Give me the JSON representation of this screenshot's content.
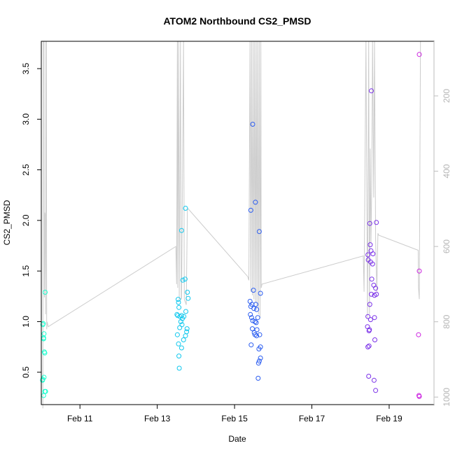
{
  "chart_data": {
    "type": "scatter",
    "title": "ATOM2 Northbound CS2_PMSD",
    "xlabel": "Date",
    "ylabel": "CS2_PMSD",
    "x_ticks": [
      "Feb 11",
      "Feb 13",
      "Feb 15",
      "Feb 17",
      "Feb 19"
    ],
    "y_ticks": [
      "0.5",
      "1.0",
      "1.5",
      "2.0",
      "2.5",
      "3.0",
      "3.5"
    ],
    "y2_ticks": [
      "200",
      "400",
      "600",
      "800",
      "1000"
    ],
    "xlim": [
      10.0,
      20.16
    ],
    "ylim": [
      0.18,
      3.77
    ],
    "y2lim": [
      55,
      1020
    ],
    "marker": "open-circle",
    "grid": false,
    "secondary_axis_color": "#bdbdbd",
    "line_color": "#cccccc",
    "points": [
      {
        "x": 10.04,
        "y": 0.97,
        "color": "#1affd0"
      },
      {
        "x": 10.05,
        "y": 0.98,
        "color": "#1affd0"
      },
      {
        "x": 10.06,
        "y": 0.84,
        "color": "#1affd0"
      },
      {
        "x": 10.06,
        "y": 0.83,
        "color": "#1affd0"
      },
      {
        "x": 10.07,
        "y": 0.88,
        "color": "#1affd0"
      },
      {
        "x": 10.08,
        "y": 0.7,
        "color": "#1affd0"
      },
      {
        "x": 10.09,
        "y": 0.69,
        "color": "#1affd0"
      },
      {
        "x": 10.03,
        "y": 0.42,
        "color": "#1affd0"
      },
      {
        "x": 10.04,
        "y": 0.43,
        "color": "#1affd0"
      },
      {
        "x": 10.07,
        "y": 0.45,
        "color": "#1affd0"
      },
      {
        "x": 10.09,
        "y": 0.31,
        "color": "#1affd0"
      },
      {
        "x": 10.06,
        "y": 0.27,
        "color": "#1affd0"
      },
      {
        "x": 10.11,
        "y": 0.31,
        "color": "#1affd0"
      },
      {
        "x": 10.1,
        "y": 1.29,
        "color": "#1affd0"
      },
      {
        "x": 13.73,
        "y": 2.12,
        "color": "#10c8ee"
      },
      {
        "x": 13.63,
        "y": 1.9,
        "color": "#10c8ee"
      },
      {
        "x": 13.66,
        "y": 1.41,
        "color": "#10c8ee"
      },
      {
        "x": 13.72,
        "y": 1.42,
        "color": "#10c8ee"
      },
      {
        "x": 13.78,
        "y": 1.29,
        "color": "#10c8ee"
      },
      {
        "x": 13.8,
        "y": 1.23,
        "color": "#10c8ee"
      },
      {
        "x": 13.54,
        "y": 1.22,
        "color": "#10c8ee"
      },
      {
        "x": 13.55,
        "y": 1.19,
        "color": "#10c8ee"
      },
      {
        "x": 13.56,
        "y": 1.14,
        "color": "#10c8ee"
      },
      {
        "x": 13.74,
        "y": 1.1,
        "color": "#10c8ee"
      },
      {
        "x": 13.51,
        "y": 1.07,
        "color": "#10c8ee"
      },
      {
        "x": 13.53,
        "y": 1.06,
        "color": "#10c8ee"
      },
      {
        "x": 13.59,
        "y": 1.05,
        "color": "#10c8ee"
      },
      {
        "x": 13.63,
        "y": 1.06,
        "color": "#10c8ee"
      },
      {
        "x": 13.65,
        "y": 1.03,
        "color": "#10c8ee"
      },
      {
        "x": 13.69,
        "y": 1.05,
        "color": "#10c8ee"
      },
      {
        "x": 13.61,
        "y": 1.0,
        "color": "#10c8ee"
      },
      {
        "x": 13.64,
        "y": 0.97,
        "color": "#10c8ee"
      },
      {
        "x": 13.58,
        "y": 0.94,
        "color": "#10c8ee"
      },
      {
        "x": 13.77,
        "y": 0.93,
        "color": "#10c8ee"
      },
      {
        "x": 13.76,
        "y": 0.9,
        "color": "#10c8ee"
      },
      {
        "x": 13.52,
        "y": 0.87,
        "color": "#10c8ee"
      },
      {
        "x": 13.73,
        "y": 0.86,
        "color": "#10c8ee"
      },
      {
        "x": 13.68,
        "y": 0.82,
        "color": "#10c8ee"
      },
      {
        "x": 13.55,
        "y": 0.78,
        "color": "#10c8ee"
      },
      {
        "x": 13.63,
        "y": 0.74,
        "color": "#10c8ee"
      },
      {
        "x": 13.56,
        "y": 0.66,
        "color": "#10c8ee"
      },
      {
        "x": 13.57,
        "y": 0.54,
        "color": "#10c8ee"
      },
      {
        "x": 15.47,
        "y": 2.95,
        "color": "#2a5cf0"
      },
      {
        "x": 15.54,
        "y": 2.18,
        "color": "#2a5cf0"
      },
      {
        "x": 15.42,
        "y": 2.1,
        "color": "#2a5cf0"
      },
      {
        "x": 15.64,
        "y": 1.89,
        "color": "#2a5cf0"
      },
      {
        "x": 15.49,
        "y": 1.31,
        "color": "#2a5cf0"
      },
      {
        "x": 15.67,
        "y": 1.28,
        "color": "#2a5cf0"
      },
      {
        "x": 15.4,
        "y": 1.2,
        "color": "#2a5cf0"
      },
      {
        "x": 15.45,
        "y": 1.17,
        "color": "#2a5cf0"
      },
      {
        "x": 15.55,
        "y": 1.17,
        "color": "#2a5cf0"
      },
      {
        "x": 15.42,
        "y": 1.15,
        "color": "#2a5cf0"
      },
      {
        "x": 15.5,
        "y": 1.13,
        "color": "#2a5cf0"
      },
      {
        "x": 15.57,
        "y": 1.12,
        "color": "#2a5cf0"
      },
      {
        "x": 15.41,
        "y": 1.07,
        "color": "#2a5cf0"
      },
      {
        "x": 15.44,
        "y": 1.04,
        "color": "#2a5cf0"
      },
      {
        "x": 15.6,
        "y": 1.04,
        "color": "#2a5cf0"
      },
      {
        "x": 15.47,
        "y": 1.01,
        "color": "#2a5cf0"
      },
      {
        "x": 15.53,
        "y": 1.0,
        "color": "#2a5cf0"
      },
      {
        "x": 15.56,
        "y": 0.99,
        "color": "#2a5cf0"
      },
      {
        "x": 15.46,
        "y": 0.93,
        "color": "#2a5cf0"
      },
      {
        "x": 15.58,
        "y": 0.92,
        "color": "#2a5cf0"
      },
      {
        "x": 15.51,
        "y": 0.89,
        "color": "#2a5cf0"
      },
      {
        "x": 15.53,
        "y": 0.87,
        "color": "#2a5cf0"
      },
      {
        "x": 15.57,
        "y": 0.86,
        "color": "#2a5cf0"
      },
      {
        "x": 15.65,
        "y": 0.87,
        "color": "#2a5cf0"
      },
      {
        "x": 15.43,
        "y": 0.77,
        "color": "#2a5cf0"
      },
      {
        "x": 15.67,
        "y": 0.75,
        "color": "#2a5cf0"
      },
      {
        "x": 15.63,
        "y": 0.73,
        "color": "#2a5cf0"
      },
      {
        "x": 15.67,
        "y": 0.64,
        "color": "#2a5cf0"
      },
      {
        "x": 15.64,
        "y": 0.61,
        "color": "#2a5cf0"
      },
      {
        "x": 15.62,
        "y": 0.59,
        "color": "#2a5cf0"
      },
      {
        "x": 15.61,
        "y": 0.44,
        "color": "#2a5cf0"
      },
      {
        "x": 18.54,
        "y": 3.28,
        "color": "#7a30e8"
      },
      {
        "x": 18.5,
        "y": 1.97,
        "color": "#7a30e8"
      },
      {
        "x": 18.67,
        "y": 1.98,
        "color": "#7a30e8"
      },
      {
        "x": 18.51,
        "y": 1.76,
        "color": "#7a30e8"
      },
      {
        "x": 18.53,
        "y": 1.7,
        "color": "#7a30e8"
      },
      {
        "x": 18.45,
        "y": 1.66,
        "color": "#7a30e8"
      },
      {
        "x": 18.58,
        "y": 1.67,
        "color": "#7a30e8"
      },
      {
        "x": 18.46,
        "y": 1.61,
        "color": "#7a30e8"
      },
      {
        "x": 18.52,
        "y": 1.59,
        "color": "#7a30e8"
      },
      {
        "x": 18.57,
        "y": 1.57,
        "color": "#7a30e8"
      },
      {
        "x": 18.55,
        "y": 1.42,
        "color": "#7a30e8"
      },
      {
        "x": 18.6,
        "y": 1.36,
        "color": "#7a30e8"
      },
      {
        "x": 18.65,
        "y": 1.33,
        "color": "#7a30e8"
      },
      {
        "x": 18.54,
        "y": 1.27,
        "color": "#7a30e8"
      },
      {
        "x": 18.62,
        "y": 1.26,
        "color": "#7a30e8"
      },
      {
        "x": 18.67,
        "y": 1.27,
        "color": "#7a30e8"
      },
      {
        "x": 18.5,
        "y": 1.17,
        "color": "#7a30e8"
      },
      {
        "x": 18.45,
        "y": 1.05,
        "color": "#7a30e8"
      },
      {
        "x": 18.52,
        "y": 1.02,
        "color": "#7a30e8"
      },
      {
        "x": 18.62,
        "y": 1.04,
        "color": "#7a30e8"
      },
      {
        "x": 18.44,
        "y": 0.95,
        "color": "#7a30e8"
      },
      {
        "x": 18.48,
        "y": 0.91,
        "color": "#7a30e8"
      },
      {
        "x": 18.49,
        "y": 0.92,
        "color": "#7a30e8"
      },
      {
        "x": 18.63,
        "y": 0.82,
        "color": "#7a30e8"
      },
      {
        "x": 18.45,
        "y": 0.75,
        "color": "#7a30e8"
      },
      {
        "x": 18.48,
        "y": 0.76,
        "color": "#7a30e8"
      },
      {
        "x": 18.47,
        "y": 0.46,
        "color": "#7a30e8"
      },
      {
        "x": 18.61,
        "y": 0.42,
        "color": "#7a30e8"
      },
      {
        "x": 18.65,
        "y": 0.32,
        "color": "#7a30e8"
      },
      {
        "x": 19.78,
        "y": 3.64,
        "color": "#cc22e0"
      },
      {
        "x": 19.78,
        "y": 1.5,
        "color": "#cc22e0"
      },
      {
        "x": 19.76,
        "y": 0.87,
        "color": "#cc22e0"
      },
      {
        "x": 19.77,
        "y": 0.27,
        "color": "#cc22e0"
      },
      {
        "x": 19.78,
        "y": 0.26,
        "color": "#cc22e0"
      }
    ],
    "line": [
      [
        10.04,
        1030
      ],
      [
        10.05,
        55
      ],
      [
        10.07,
        55
      ],
      [
        10.08,
        735
      ],
      [
        10.09,
        510
      ],
      [
        10.1,
        520
      ],
      [
        10.11,
        780
      ],
      [
        10.12,
        55
      ],
      [
        10.13,
        55
      ],
      [
        10.14,
        820
      ],
      [
        10.15,
        800
      ],
      [
        10.18,
        813
      ],
      [
        13.48,
        600
      ],
      [
        13.5,
        700
      ],
      [
        13.52,
        55
      ],
      [
        13.53,
        710
      ],
      [
        13.55,
        55
      ],
      [
        13.57,
        740
      ],
      [
        13.6,
        55
      ],
      [
        13.62,
        740
      ],
      [
        13.63,
        740
      ],
      [
        13.68,
        55
      ],
      [
        13.7,
        740
      ],
      [
        13.75,
        755
      ],
      [
        13.78,
        500
      ],
      [
        13.8,
        500
      ],
      [
        15.34,
        680
      ],
      [
        15.37,
        690
      ],
      [
        15.4,
        55
      ],
      [
        15.42,
        720
      ],
      [
        15.44,
        55
      ],
      [
        15.46,
        730
      ],
      [
        15.48,
        55
      ],
      [
        15.5,
        740
      ],
      [
        15.52,
        55
      ],
      [
        15.54,
        750
      ],
      [
        15.56,
        55
      ],
      [
        15.58,
        760
      ],
      [
        15.6,
        55
      ],
      [
        15.62,
        780
      ],
      [
        15.64,
        55
      ],
      [
        15.66,
        790
      ],
      [
        15.68,
        55
      ],
      [
        15.69,
        710
      ],
      [
        15.71,
        700
      ],
      [
        18.33,
        625
      ],
      [
        18.35,
        720
      ],
      [
        18.4,
        55
      ],
      [
        18.44,
        790
      ],
      [
        18.47,
        55
      ],
      [
        18.49,
        780
      ],
      [
        18.51,
        340
      ],
      [
        18.53,
        590
      ],
      [
        18.55,
        430
      ],
      [
        18.57,
        55
      ],
      [
        18.6,
        470
      ],
      [
        18.62,
        55
      ],
      [
        18.65,
        580
      ],
      [
        18.68,
        720
      ],
      [
        18.71,
        565
      ],
      [
        18.73,
        570
      ],
      [
        19.75,
        610
      ],
      [
        19.76,
        710
      ],
      [
        19.78,
        740
      ],
      [
        19.81,
        55
      ]
    ]
  }
}
